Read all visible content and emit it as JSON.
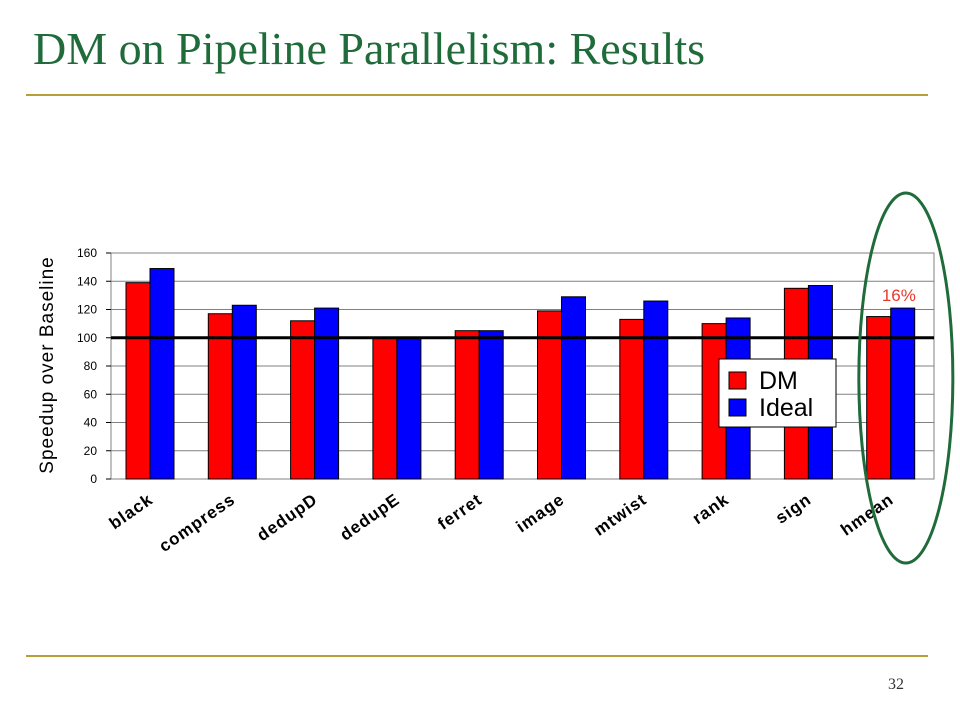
{
  "slide": {
    "title": "DM on Pipeline Parallelism: Results",
    "page_number": "32"
  },
  "colors": {
    "title": "#1f6b3a",
    "rule": "#b7a037",
    "dm": "#ff0000",
    "ideal": "#0000ff",
    "baseline": "#000000",
    "highlight": "#1f6b3a",
    "annotation": "#e8392a"
  },
  "chart_data": {
    "type": "bar",
    "ylabel": "Speedup over Baseline",
    "xlabel": "",
    "ylim": [
      0,
      160
    ],
    "yticks": [
      "0",
      "20",
      "40",
      "60",
      "80",
      "100",
      "120",
      "140",
      "160"
    ],
    "grid": true,
    "baseline_value": 100,
    "categories": [
      "black",
      "compress",
      "dedupD",
      "dedupE",
      "ferret",
      "image",
      "mtwist",
      "rank",
      "sign",
      "hmean"
    ],
    "series": [
      {
        "name": "DM",
        "values": [
          139,
          117,
          112,
          100,
          105,
          119,
          113,
          110,
          135,
          115
        ]
      },
      {
        "name": "Ideal",
        "values": [
          149,
          123,
          121,
          100,
          105,
          129,
          126,
          114,
          137,
          121
        ]
      }
    ],
    "legend_position": "inside-right",
    "annotations": [
      {
        "text": "16%",
        "category": "hmean",
        "note_shape": "ellipse"
      }
    ]
  }
}
